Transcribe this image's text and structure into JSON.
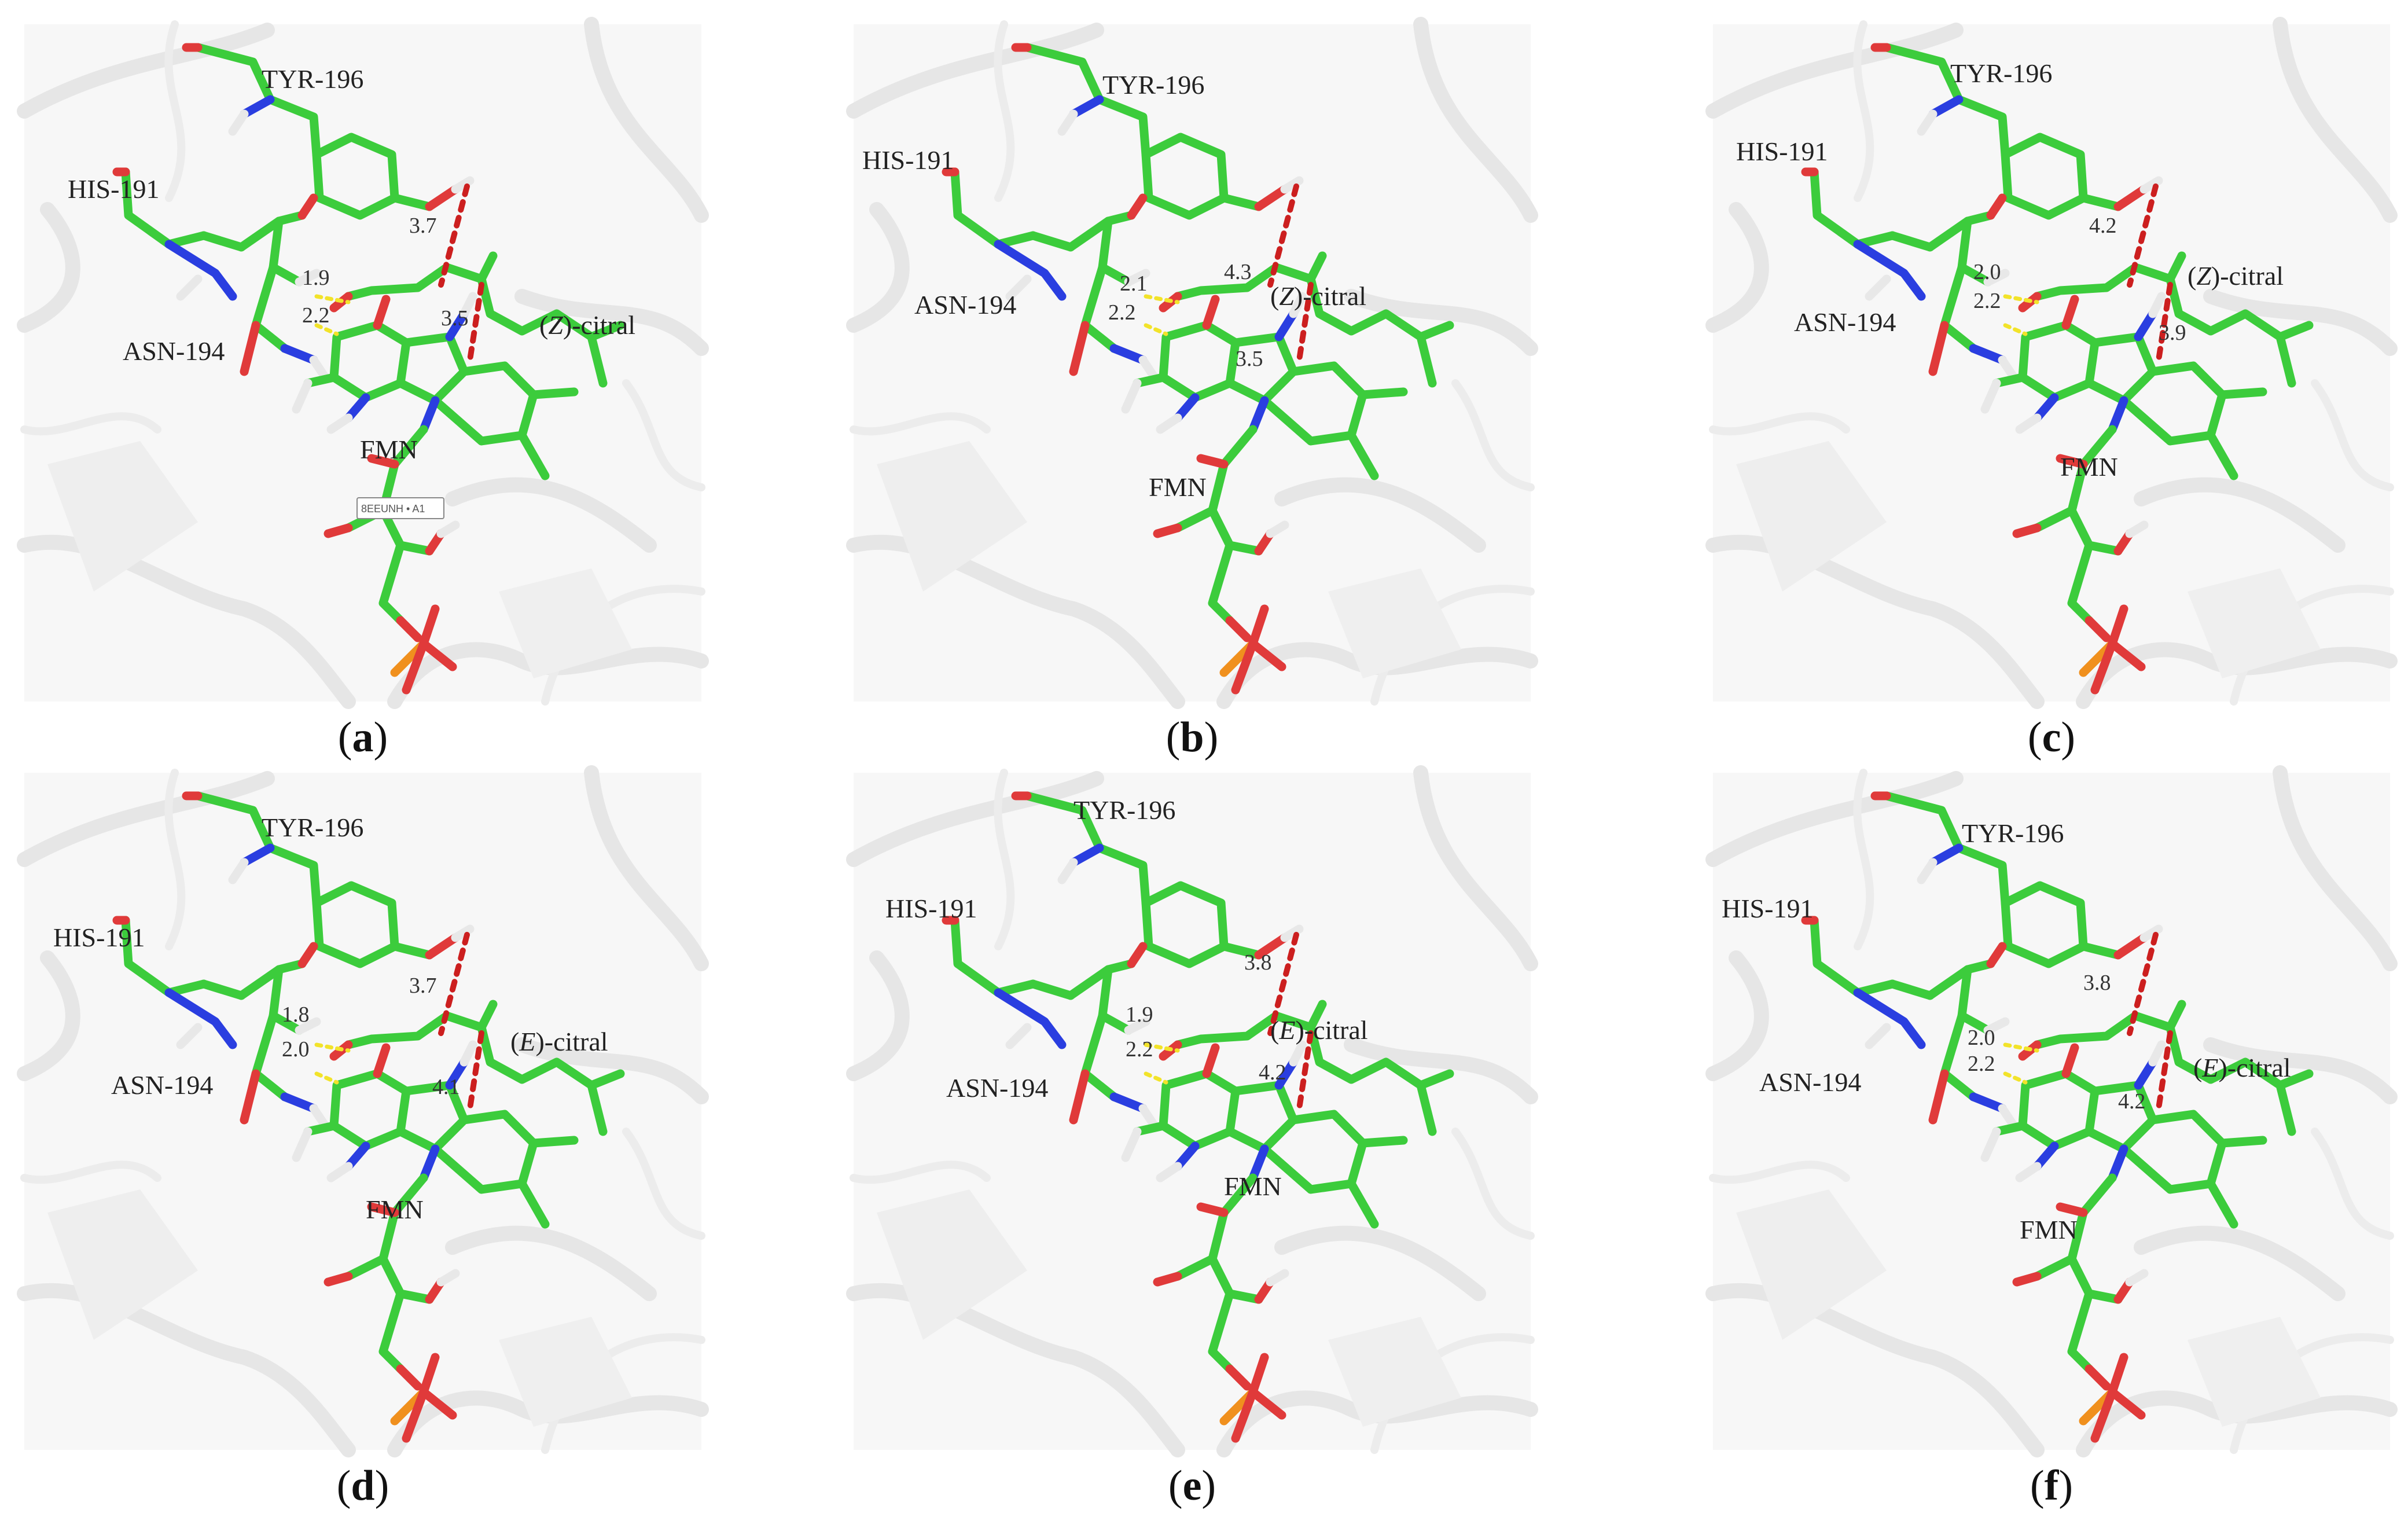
{
  "panels": [
    {
      "caption_letter": "a",
      "ligand_prefix": "(",
      "ligand_isomer": "Z",
      "ligand_suffix": ")-citral",
      "labels": {
        "tyr": "TYR-196",
        "his": "HIS-191",
        "asn": "ASN-194",
        "fmn": "FMN"
      },
      "distances": {
        "hb1": "1.9",
        "hb2": "2.2",
        "d_tyr": "3.7",
        "d_fmn": "3.5"
      },
      "overlay_tag": "8EEUNH • A1"
    },
    {
      "caption_letter": "b",
      "ligand_prefix": "(",
      "ligand_isomer": "Z",
      "ligand_suffix": ")-citral",
      "labels": {
        "tyr": "TYR-196",
        "his": "HIS-191",
        "asn": "ASN-194",
        "fmn": "FMN"
      },
      "distances": {
        "hb1": "2.1",
        "hb2": "2.2",
        "d_tyr": "4.3",
        "d_fmn": "3.5"
      }
    },
    {
      "caption_letter": "c",
      "ligand_prefix": "(",
      "ligand_isomer": "Z",
      "ligand_suffix": ")-citral",
      "labels": {
        "tyr": "TYR-196",
        "his": "HIS-191",
        "asn": "ASN-194",
        "fmn": "FMN"
      },
      "distances": {
        "hb1": "2.0",
        "hb2": "2.2",
        "d_tyr": "4.2",
        "d_fmn": "3.9"
      }
    },
    {
      "caption_letter": "d",
      "ligand_prefix": "(",
      "ligand_isomer": "E",
      "ligand_suffix": ")-citral",
      "labels": {
        "tyr": "TYR-196",
        "his": "HIS-191",
        "asn": "ASN-194",
        "fmn": "FMN"
      },
      "distances": {
        "hb1": "1.8",
        "hb2": "2.0",
        "d_tyr": "3.7",
        "d_fmn": "4.1"
      }
    },
    {
      "caption_letter": "e",
      "ligand_prefix": "(",
      "ligand_isomer": "E",
      "ligand_suffix": ")-citral",
      "labels": {
        "tyr": "TYR-196",
        "his": "HIS-191",
        "asn": "ASN-194",
        "fmn": "FMN"
      },
      "distances": {
        "hb1": "1.9",
        "hb2": "2.2",
        "d_tyr": "3.8",
        "d_fmn": "4.2"
      }
    },
    {
      "caption_letter": "f",
      "ligand_prefix": "(",
      "ligand_isomer": "E",
      "ligand_suffix": ")-citral",
      "labels": {
        "tyr": "TYR-196",
        "his": "HIS-191",
        "asn": "ASN-194",
        "fmn": "FMN"
      },
      "distances": {
        "hb1": "2.0",
        "hb2": "2.2",
        "d_tyr": "3.8",
        "d_fmn": "4.2"
      }
    }
  ],
  "colors": {
    "carbon": "#3ccc3c",
    "nitrogen": "#2a3ee0",
    "oxygen": "#e03a3a",
    "phosphorus": "#f0901e",
    "hydrogen": "#e8e8e8",
    "hbond": "#f2e32a",
    "distance": "#cc1f1f",
    "protein": "#f1f1f1"
  }
}
